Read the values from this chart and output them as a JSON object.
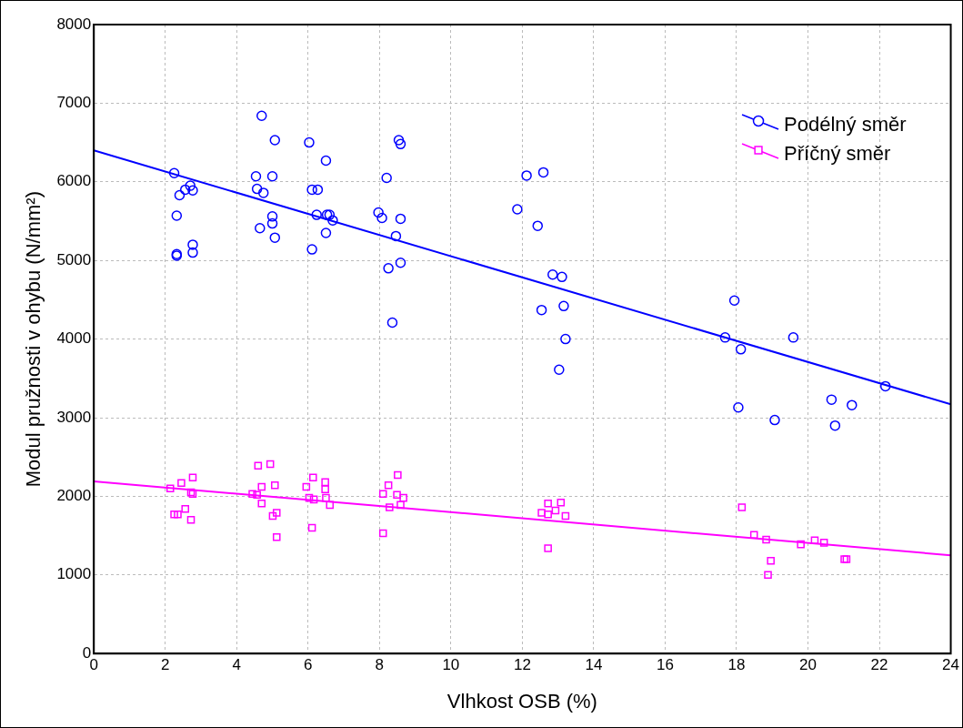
{
  "chart_data": {
    "type": "scatter",
    "xlabel": "Vlhkost OSB (%)",
    "ylabel": "Modul pružnosti v ohybu (N/mm²)",
    "xlim": [
      0,
      24
    ],
    "xticks": [
      0,
      2,
      4,
      6,
      8,
      10,
      12,
      14,
      16,
      18,
      20,
      22,
      24
    ],
    "ylim": [
      0,
      8000
    ],
    "yticks": [
      0,
      1000,
      2000,
      3000,
      4000,
      5000,
      6000,
      7000,
      8000
    ],
    "grid": true,
    "legend": "top right",
    "series": [
      {
        "name": "Podélný směr",
        "color": "#0000ff",
        "marker": "circle",
        "x": [
          2.25,
          2.32,
          2.4,
          2.56,
          2.7,
          2.77,
          2.32,
          2.32,
          2.77,
          2.77,
          4.54,
          4.7,
          4.57,
          4.75,
          5.07,
          5.0,
          5.0,
          5.0,
          4.65,
          5.07,
          6.03,
          6.5,
          6.11,
          6.27,
          6.24,
          6.53,
          6.6,
          6.69,
          6.5,
          6.11,
          7.97,
          8.07,
          8.2,
          8.46,
          8.25,
          8.36,
          8.54,
          8.59,
          8.59,
          8.59,
          11.86,
          12.12,
          12.59,
          12.43,
          12.54,
          12.85,
          13.11,
          13.16,
          13.21,
          13.03,
          17.94,
          17.68,
          18.12,
          19.59,
          18.05,
          19.07,
          20.66,
          21.23,
          20.76,
          22.17
        ],
        "values": [
          6110,
          5570,
          5830,
          5900,
          5950,
          5890,
          5080,
          5060,
          5200,
          5100,
          6070,
          6840,
          5910,
          5860,
          6530,
          6070,
          5560,
          5470,
          5410,
          5290,
          6500,
          6270,
          5900,
          5900,
          5580,
          5580,
          5580,
          5510,
          5350,
          5140,
          5610,
          5540,
          6050,
          5310,
          4900,
          4210,
          6530,
          6480,
          5530,
          4970,
          5650,
          6080,
          6120,
          5440,
          4370,
          4820,
          4790,
          4420,
          4000,
          3610,
          4490,
          4020,
          3870,
          4020,
          3130,
          2970,
          3230,
          3160,
          2900,
          3400
        ]
      },
      {
        "name": "Příčný směr",
        "color": "#ff00ff",
        "marker": "square",
        "x": [
          2.14,
          2.45,
          2.77,
          2.72,
          2.77,
          2.56,
          2.25,
          2.35,
          2.72,
          4.6,
          4.94,
          4.7,
          5.07,
          4.44,
          4.57,
          4.7,
          5.12,
          5.01,
          5.12,
          6.14,
          6.48,
          5.95,
          6.48,
          6.03,
          6.16,
          6.5,
          6.61,
          6.11,
          8.51,
          8.25,
          8.1,
          8.49,
          8.67,
          8.28,
          8.59,
          8.1,
          12.72,
          13.08,
          12.54,
          12.72,
          12.93,
          13.21,
          12.72,
          18.15,
          18.49,
          18.83,
          18.96,
          18.88,
          19.8,
          20.19,
          20.45,
          21.02,
          21.08
        ],
        "values": [
          2100,
          2170,
          2240,
          2050,
          2030,
          1840,
          1770,
          1770,
          1700,
          2390,
          2410,
          2120,
          2140,
          2030,
          2020,
          1910,
          1790,
          1750,
          1480,
          2240,
          2180,
          2120,
          2090,
          1980,
          1960,
          1980,
          1890,
          1600,
          2270,
          2140,
          2030,
          2020,
          1980,
          1860,
          1890,
          1530,
          1910,
          1920,
          1790,
          1770,
          1820,
          1750,
          1340,
          1860,
          1510,
          1450,
          1180,
          1000,
          1390,
          1440,
          1410,
          1200,
          1200
        ]
      },
      {
        "type": "line",
        "color": "#0000ff",
        "marker": "none",
        "x": [
          0,
          24
        ],
        "values": [
          6400,
          3170
        ]
      },
      {
        "type": "line",
        "color": "#ff00ff",
        "marker": "none",
        "x": [
          0,
          24
        ],
        "values": [
          2190,
          1250
        ]
      }
    ]
  }
}
